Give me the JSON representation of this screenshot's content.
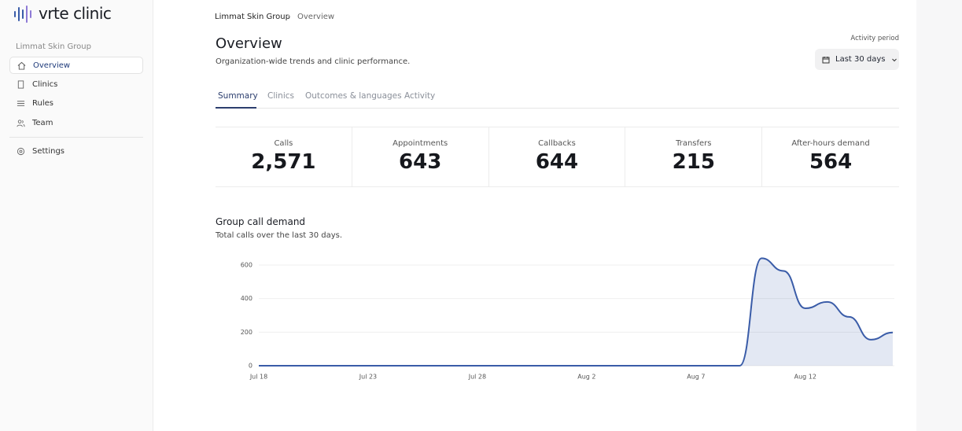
{
  "sidebar": {
    "logo": "vrte clinic",
    "organization": "Limmat Skin Group",
    "nav": [
      "Overview",
      "Clinics",
      "Rules",
      "Team"
    ],
    "settings": "Settings"
  },
  "breadcrumb": [
    "Limmat Skin Group",
    "Overview"
  ],
  "header": {
    "title": "Overview",
    "subtitle": "Organization-wide trends and clinic performance.",
    "period_label": "Activity period",
    "period_button": "Last 30 days"
  },
  "tabs": [
    "Summary",
    "Clinics",
    "Outcomes & languages",
    "Activity"
  ],
  "stats": [
    {
      "label": "Calls",
      "value": "2,571"
    },
    {
      "label": "Appointments",
      "value": "643"
    },
    {
      "label": "Callbacks",
      "value": "644"
    },
    {
      "label": "Transfers",
      "value": "215"
    },
    {
      "label": "After-hours demand",
      "value": "564"
    }
  ],
  "chart_data": {
    "type": "line",
    "title": "Group call demand",
    "subtitle": "Total calls over the last 30 days.",
    "x": [
      "Jul 18",
      "Jul 19",
      "Jul 20",
      "Jul 21",
      "Jul 22",
      "Jul 23",
      "Jul 24",
      "Jul 25",
      "Jul 26",
      "Jul 27",
      "Jul 28",
      "Jul 29",
      "Jul 30",
      "Jul 31",
      "Aug 1",
      "Aug 2",
      "Aug 3",
      "Aug 4",
      "Aug 5",
      "Aug 6",
      "Aug 7",
      "Aug 8",
      "Aug 9",
      "Aug 10",
      "Aug 11",
      "Aug 12",
      "Aug 13",
      "Aug 14",
      "Aug 15",
      "Aug 16"
    ],
    "series": [
      {
        "name": "Calls",
        "color": "#3a5ca8",
        "values": [
          0,
          0,
          0,
          0,
          0,
          0,
          0,
          0,
          0,
          0,
          0,
          0,
          0,
          0,
          0,
          0,
          0,
          0,
          0,
          0,
          0,
          0,
          0,
          640,
          565,
          342,
          380,
          291,
          155,
          198
        ]
      }
    ],
    "xticks": [
      "Jul 18",
      "Jul 23",
      "Jul 28",
      "Aug 2",
      "Aug 7",
      "Aug 12"
    ],
    "ylim": [
      0,
      650
    ],
    "yticks": [
      0,
      200,
      400,
      600
    ],
    "grid": true,
    "area": true
  }
}
